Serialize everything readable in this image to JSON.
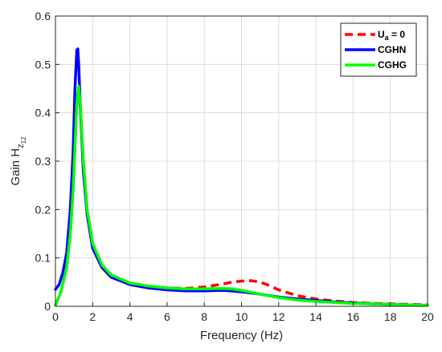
{
  "chart_data": {
    "type": "line",
    "xlabel": "Frequency (Hz)",
    "ylabel": {
      "prefix": "Gain H",
      "sub1": "z",
      "sub2": "12"
    },
    "xlim": [
      0,
      20
    ],
    "ylim": [
      0,
      0.6
    ],
    "xticks": [
      "0",
      "2",
      "4",
      "6",
      "8",
      "10",
      "12",
      "14",
      "16",
      "18",
      "20"
    ],
    "yticks": [
      "0",
      "0.1",
      "0.2",
      "0.3",
      "0.4",
      "0.5",
      "0.6"
    ],
    "grid": true,
    "legend_position": "top-right",
    "series": [
      {
        "name": "U_a = 0",
        "legend": {
          "base": "U",
          "sub": "a",
          "tail": " = 0"
        },
        "color": "#ff0000",
        "style": "dashed",
        "x": [
          0,
          0.3,
          0.6,
          0.8,
          0.95,
          1.05,
          1.15,
          1.25,
          1.35,
          1.5,
          1.7,
          2.0,
          2.5,
          3.0,
          4.0,
          5.0,
          6.0,
          7.0,
          8.0,
          9.0,
          9.5,
          10.0,
          10.5,
          11.0,
          11.5,
          12.0,
          13.0,
          14.0,
          15.0,
          16.0,
          17.0,
          18.0,
          19.0,
          20.0
        ],
        "y": [
          0.002,
          0.03,
          0.08,
          0.15,
          0.24,
          0.33,
          0.42,
          0.45,
          0.4,
          0.3,
          0.2,
          0.13,
          0.085,
          0.065,
          0.048,
          0.042,
          0.038,
          0.037,
          0.04,
          0.046,
          0.05,
          0.052,
          0.053,
          0.05,
          0.043,
          0.034,
          0.022,
          0.015,
          0.011,
          0.008,
          0.006,
          0.005,
          0.004,
          0.003
        ]
      },
      {
        "name": "CGHN",
        "legend": {
          "base": "CGHN",
          "sub": "",
          "tail": ""
        },
        "color": "#0000ff",
        "style": "solid",
        "x": [
          0,
          0.2,
          0.4,
          0.6,
          0.8,
          0.95,
          1.05,
          1.15,
          1.2,
          1.25,
          1.35,
          1.5,
          1.7,
          2.0,
          2.5,
          3.0,
          4.0,
          5.0,
          6.0,
          7.0,
          8.0,
          9.0,
          10.0,
          11.0,
          12.0,
          13.0,
          14.0,
          15.0,
          16.0,
          17.0,
          18.0,
          19.0,
          20.0
        ],
        "y": [
          0.035,
          0.045,
          0.07,
          0.11,
          0.2,
          0.32,
          0.45,
          0.53,
          0.532,
          0.5,
          0.4,
          0.28,
          0.19,
          0.12,
          0.08,
          0.06,
          0.045,
          0.038,
          0.034,
          0.032,
          0.032,
          0.033,
          0.03,
          0.025,
          0.019,
          0.015,
          0.012,
          0.009,
          0.007,
          0.005,
          0.004,
          0.003,
          0.002
        ]
      },
      {
        "name": "CGHG",
        "legend": {
          "base": "CGHG",
          "sub": "",
          "tail": ""
        },
        "color": "#00ff00",
        "style": "solid",
        "x": [
          0,
          0.3,
          0.6,
          0.8,
          0.95,
          1.05,
          1.15,
          1.25,
          1.35,
          1.5,
          1.7,
          2.0,
          2.5,
          3.0,
          4.0,
          5.0,
          6.0,
          7.0,
          8.0,
          9.0,
          9.5,
          10.0,
          11.0,
          12.0,
          13.0,
          14.0,
          15.0,
          16.0,
          17.0,
          18.0,
          19.0,
          20.0
        ],
        "y": [
          0.002,
          0.03,
          0.08,
          0.15,
          0.24,
          0.33,
          0.42,
          0.455,
          0.41,
          0.3,
          0.2,
          0.13,
          0.085,
          0.065,
          0.048,
          0.042,
          0.038,
          0.036,
          0.036,
          0.037,
          0.036,
          0.033,
          0.025,
          0.018,
          0.013,
          0.01,
          0.008,
          0.006,
          0.005,
          0.004,
          0.003,
          0.002
        ]
      }
    ]
  }
}
